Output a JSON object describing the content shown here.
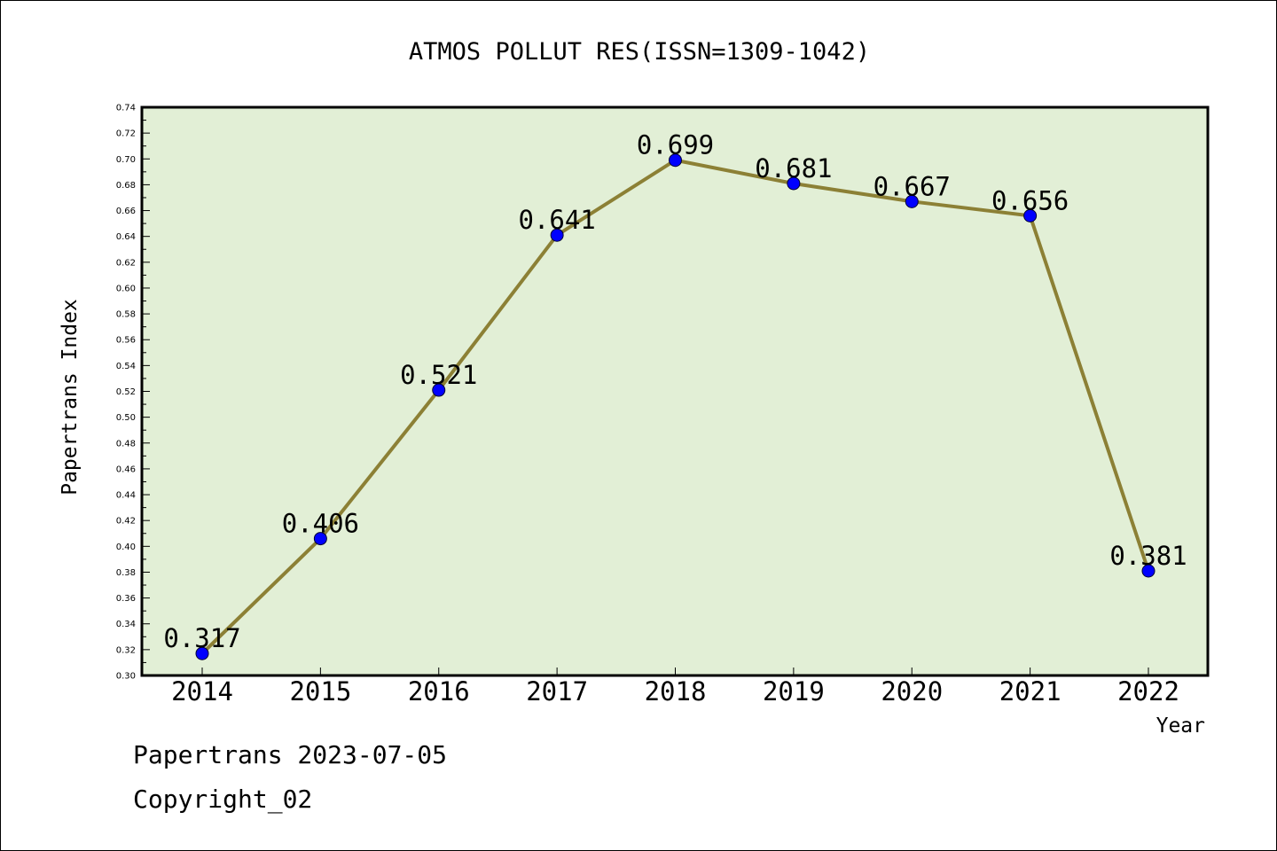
{
  "chart_data": {
    "type": "line",
    "title": "ATMOS POLLUT RES(ISSN=1309-1042)",
    "xlabel": "Year",
    "ylabel": "Papertrans Index",
    "categories": [
      "2014",
      "2015",
      "2016",
      "2017",
      "2018",
      "2019",
      "2020",
      "2021",
      "2022"
    ],
    "values": [
      0.317,
      0.406,
      0.521,
      0.641,
      0.699,
      0.681,
      0.667,
      0.656,
      0.381
    ],
    "data_labels": [
      "0.317",
      "0.406",
      "0.521",
      "0.641",
      "0.699",
      "0.681",
      "0.667",
      "0.656",
      "0.381"
    ],
    "ylim": [
      0.3,
      0.74
    ],
    "yticks": [
      "0.30",
      "0.32",
      "0.34",
      "0.36",
      "0.38",
      "0.40",
      "0.42",
      "0.44",
      "0.46",
      "0.48",
      "0.50",
      "0.52",
      "0.54",
      "0.56",
      "0.58",
      "0.60",
      "0.62",
      "0.64",
      "0.66",
      "0.68",
      "0.70",
      "0.72",
      "0.74"
    ],
    "grid": false,
    "colors": {
      "plot_background": "#e2efd6",
      "line": "#8c8035",
      "marker": "#0000ff"
    }
  },
  "footer": {
    "date_line": "Papertrans 2023-07-05",
    "copyright": "Copyright_02"
  }
}
